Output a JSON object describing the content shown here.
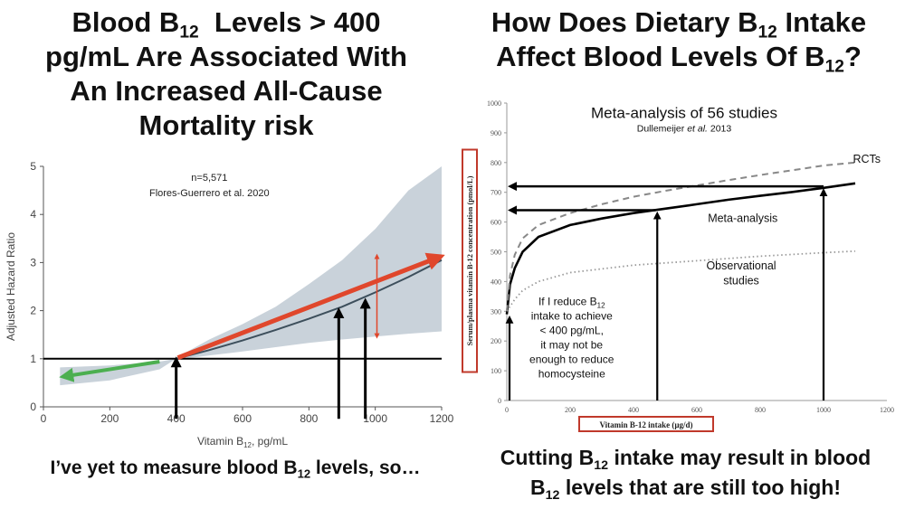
{
  "left": {
    "title": {
      "line1_pre": "Blood B",
      "line1_sub": "12",
      "line1_post": "  Levels > 400",
      "line2": "pg/mL Are Associated With",
      "line3": "An Increased All-Cause",
      "line4": "Mortality risk"
    },
    "caption": {
      "pre": "I’ve yet to measure blood B",
      "sub": "12",
      "post": " levels, so…"
    }
  },
  "right": {
    "title": {
      "line1_pre": "How Does Dietary B",
      "line1_sub": "12",
      "line1_post": " Intake",
      "line2_pre": "Affect Blood Levels Of B",
      "line2_sub": "12",
      "line2_post": "?"
    },
    "caption": {
      "line1_pre": "Cutting B",
      "line1_sub": "12",
      "line1_post": " intake may result in blood",
      "line2_pre": "B",
      "line2_sub": "12",
      "line2_post": " levels that are still too high!"
    }
  },
  "chart_data": [
    {
      "type": "line",
      "ylabel": "Adjusted Hazard Ratio",
      "xlabel_pre": "Vitamin B",
      "xlabel_sub": "12",
      "xlabel_post": ", pg/mL",
      "xlim": [
        0,
        1200
      ],
      "ylim": [
        0,
        5
      ],
      "xticks": [
        0,
        200,
        400,
        600,
        800,
        1000,
        1200
      ],
      "yticks": [
        0,
        1,
        2,
        3,
        4,
        5
      ],
      "annotation_n": "n=5,571",
      "annotation_source": "Flores-Guerrero et al. 2020",
      "reference_line_y": 1,
      "series": [
        {
          "name": "hazard ratio",
          "color": "#3d4f5c",
          "x": [
            400,
            500,
            600,
            700,
            800,
            900,
            1000,
            1100,
            1200
          ],
          "y": [
            1.0,
            1.18,
            1.38,
            1.6,
            1.83,
            2.08,
            2.38,
            2.7,
            3.05
          ]
        },
        {
          "name": "ci_upper",
          "x": [
            400,
            500,
            600,
            700,
            800,
            900,
            1000,
            1100,
            1200
          ],
          "y": [
            1.02,
            1.4,
            1.72,
            2.08,
            2.55,
            3.05,
            3.7,
            4.5,
            5.0
          ]
        },
        {
          "name": "ci_lower",
          "x": [
            400,
            500,
            600,
            700,
            800,
            900,
            1000,
            1100,
            1200
          ],
          "y": [
            0.98,
            1.07,
            1.15,
            1.24,
            1.33,
            1.4,
            1.46,
            1.52,
            1.57
          ]
        },
        {
          "name": "low_ci_upper",
          "x": [
            50,
            200,
            350,
            400
          ],
          "y": [
            0.82,
            0.86,
            0.94,
            1.0
          ]
        },
        {
          "name": "low_ci_lower",
          "x": [
            50,
            200,
            350,
            400
          ],
          "y": [
            0.45,
            0.55,
            0.78,
            1.0
          ]
        }
      ],
      "arrows": {
        "red_trend": {
          "from": [
            405,
            1.02
          ],
          "to": [
            1195,
            3.12
          ],
          "color": "#e0472c"
        },
        "red_range": {
          "x": 1005,
          "y_low": 1.45,
          "y_high": 3.15,
          "color": "#e0472c"
        },
        "green_trend": {
          "from": [
            350,
            0.94
          ],
          "to": [
            60,
            0.63
          ],
          "color": "#4caf50"
        },
        "black_up": [
          {
            "x": 400,
            "y_from": -0.25,
            "y_to": 0.98
          },
          {
            "x": 890,
            "y_from": -0.25,
            "y_to": 2.0
          },
          {
            "x": 970,
            "y_from": -0.25,
            "y_to": 2.2
          }
        ]
      }
    },
    {
      "type": "line",
      "title": "Meta-analysis of 56 studies",
      "subtitle_pre": "Dullemeijer ",
      "subtitle_italic": "et al.",
      "subtitle_post": " 2013",
      "xlabel": "Vitamin B-12 intake (µg/d)",
      "ylabel": "Serum/plasma vitamin B-12 concentration (pmol/L)",
      "xlim": [
        0,
        1200
      ],
      "ylim": [
        0,
        1000
      ],
      "xticks": [
        0,
        200,
        400,
        600,
        800,
        1000,
        1200
      ],
      "yticks": [
        0,
        100,
        200,
        300,
        400,
        500,
        600,
        700,
        800,
        900,
        1000
      ],
      "series": [
        {
          "name": "Meta-analysis",
          "style": "solid",
          "x": [
            0,
            10,
            25,
            50,
            100,
            200,
            300,
            400,
            500,
            600,
            700,
            800,
            900,
            1000,
            1100
          ],
          "y": [
            290,
            390,
            445,
            500,
            550,
            590,
            612,
            630,
            645,
            660,
            675,
            688,
            701,
            715,
            730
          ]
        },
        {
          "name": "RCTs",
          "style": "dashed",
          "x": [
            0,
            10,
            25,
            50,
            100,
            200,
            300,
            400,
            500,
            600,
            700,
            800,
            900,
            1000,
            1100
          ],
          "y": [
            300,
            420,
            490,
            545,
            590,
            630,
            660,
            685,
            705,
            723,
            741,
            758,
            774,
            790,
            800
          ]
        },
        {
          "name": "Observational studies",
          "style": "dotted",
          "x": [
            0,
            25,
            50,
            100,
            200,
            400,
            600,
            800,
            1000,
            1100
          ],
          "y": [
            300,
            340,
            370,
            400,
            430,
            455,
            470,
            485,
            497,
            502
          ]
        }
      ],
      "labels": {
        "rcts": "RCTs",
        "meta": "Meta-analysis",
        "obs_line1": "Observational",
        "obs_line2": "studies"
      },
      "note": {
        "line1_pre": "If I reduce B",
        "line1_sub": "12",
        "line2": "intake to achieve",
        "line3": "< 400 pg/mL,",
        "line4": "it may not be",
        "line5": "enough to reduce",
        "line6": "homocysteine"
      },
      "arrows": {
        "horizontal": [
          {
            "y": 720,
            "x_from": 1000,
            "x_to": 0
          },
          {
            "y": 640,
            "x_from": 470,
            "x_to": 0
          }
        ],
        "vertical": [
          {
            "x": 0,
            "y_from": 0,
            "y_to": 290
          },
          {
            "x": 475,
            "y_from": 0,
            "y_to": 640
          },
          {
            "x": 1000,
            "y_from": 0,
            "y_to": 718
          }
        ]
      },
      "label_box_color": "#c0392b"
    }
  ]
}
